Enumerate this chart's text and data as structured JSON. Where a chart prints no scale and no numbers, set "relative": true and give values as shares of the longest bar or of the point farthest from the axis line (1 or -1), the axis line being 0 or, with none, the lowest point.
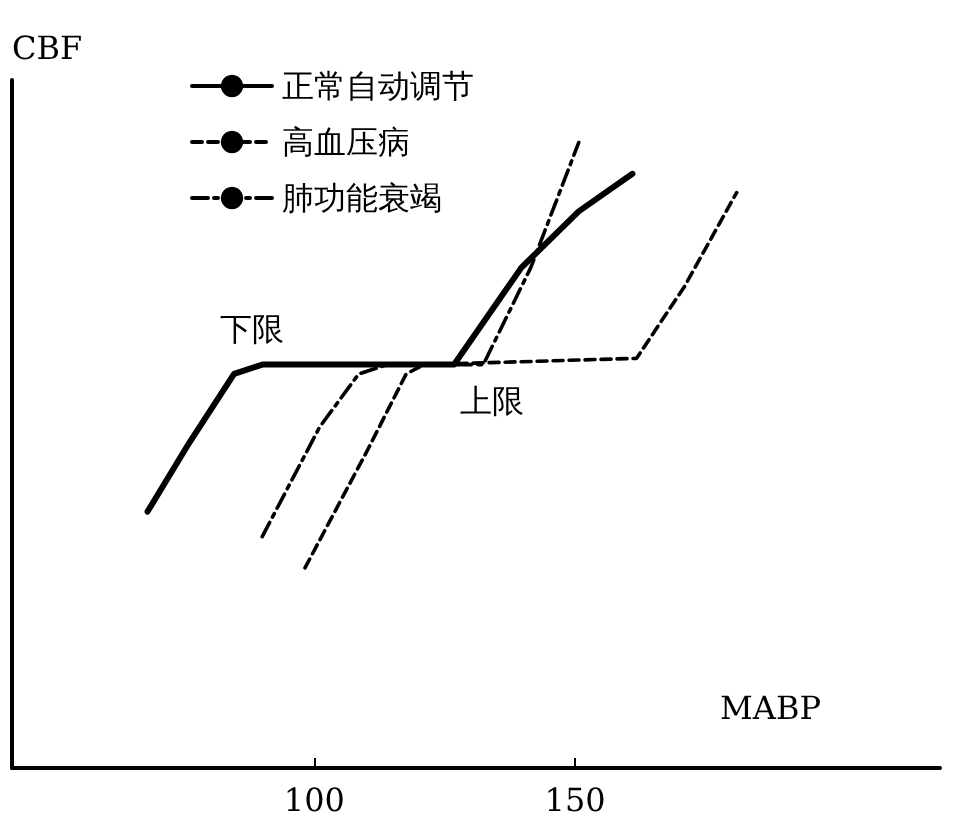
{
  "chart_data": {
    "type": "line",
    "relative": true,
    "xlabel": "MABP",
    "ylabel": "CBF",
    "xlim": [
      42,
      220
    ],
    "xticks": [
      100,
      150
    ],
    "tick_labels": "x",
    "grid": false,
    "legend": "top left",
    "marker": "none",
    "series": [
      {
        "name": "正常自动调节",
        "color": "#000000",
        "line_style": "solid",
        "x": [
          68,
          76,
          84.6,
          90,
          126.8,
          139.7,
          150.7,
          161
        ],
        "values": [
          0.41,
          0.52,
          0.63,
          0.645,
          0.645,
          0.8,
          0.89,
          0.95
        ]
      },
      {
        "name": "高血压病",
        "color": "#000000",
        "line_style": "dashed",
        "x": [
          98.2,
          110.3,
          117.6,
          121,
          161.8,
          171,
          181
        ],
        "values": [
          0.32,
          0.51,
          0.63,
          0.645,
          0.655,
          0.77,
          0.92
        ]
      },
      {
        "name": "肺功能衰竭",
        "color": "#000000",
        "line_style": "dashdot",
        "x": [
          90,
          101,
          108.5,
          114,
          132.4,
          141.5,
          150.7
        ],
        "values": [
          0.37,
          0.545,
          0.63,
          0.645,
          0.645,
          0.8,
          1.0
        ]
      }
    ],
    "annotations": [
      {
        "text": "下限",
        "x": 88,
        "y": 0.645
      },
      {
        "text": "上限",
        "x": 134,
        "y": 0.645
      }
    ]
  }
}
